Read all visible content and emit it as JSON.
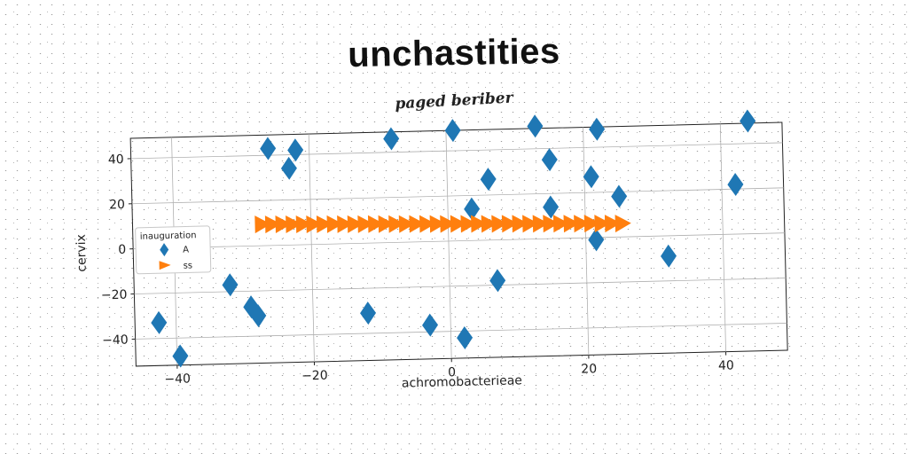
{
  "chart_data": {
    "type": "scatter",
    "title": "unchastities",
    "subtitle": "paged beriber",
    "xlabel": "achromobacterieae",
    "ylabel": "cervix",
    "xlim": [
      -46,
      49
    ],
    "ylim": [
      -52,
      49
    ],
    "xticks": [
      -40,
      -20,
      0,
      20,
      40
    ],
    "yticks": [
      -40,
      -20,
      0,
      20,
      40
    ],
    "xtick_labels": [
      "−40",
      "−20",
      "0",
      "20",
      "40"
    ],
    "ytick_labels": [
      "−40",
      "−20",
      "0",
      "20",
      "40"
    ],
    "grid": true,
    "legend": {
      "title": "inauguration",
      "position": "center-left"
    },
    "series": [
      {
        "name": "A",
        "marker": "diamond",
        "color": "#1f77b4",
        "points": [
          [
            -42.5,
            -33
          ],
          [
            -39.5,
            -48
          ],
          [
            -32,
            -17
          ],
          [
            -29,
            -27
          ],
          [
            -28,
            -31
          ],
          [
            -26,
            43
          ],
          [
            -23,
            34
          ],
          [
            -22,
            42
          ],
          [
            -12,
            -31
          ],
          [
            -8,
            46
          ],
          [
            -3,
            -37
          ],
          [
            1,
            49
          ],
          [
            2,
            -43
          ],
          [
            3.5,
            14
          ],
          [
            6,
            27
          ],
          [
            7,
            -18
          ],
          [
            13,
            50
          ],
          [
            15,
            35
          ],
          [
            15,
            14
          ],
          [
            21,
            27
          ],
          [
            21.5,
            -1
          ],
          [
            22,
            48
          ],
          [
            25,
            18
          ],
          [
            32,
            -9
          ],
          [
            42,
            22
          ],
          [
            44,
            50
          ]
        ]
      },
      {
        "name": "ss",
        "marker": "triangle-right",
        "color": "#ff7f0e",
        "points": [
          [
            -27.0,
            9.5
          ],
          [
            -25.5,
            9.4
          ],
          [
            -24.0,
            9.3
          ],
          [
            -22.5,
            9.2
          ],
          [
            -21.0,
            9.1
          ],
          [
            -19.5,
            9.0
          ],
          [
            -18.0,
            8.9
          ],
          [
            -16.5,
            8.8
          ],
          [
            -15.0,
            8.7
          ],
          [
            -13.5,
            8.6
          ],
          [
            -12.0,
            8.5
          ],
          [
            -10.5,
            8.4
          ],
          [
            -9.0,
            8.3
          ],
          [
            -7.5,
            8.2
          ],
          [
            -6.0,
            8.1
          ],
          [
            -4.5,
            8.0
          ],
          [
            -3.0,
            7.9
          ],
          [
            -1.5,
            7.8
          ],
          [
            0.0,
            7.7
          ],
          [
            1.5,
            7.6
          ],
          [
            3.0,
            7.5
          ],
          [
            4.5,
            7.4
          ],
          [
            6.0,
            7.3
          ],
          [
            7.5,
            7.2
          ],
          [
            9.0,
            7.1
          ],
          [
            10.5,
            7.0
          ],
          [
            12.0,
            6.9
          ],
          [
            13.5,
            6.8
          ],
          [
            15.0,
            6.7
          ],
          [
            16.5,
            6.6
          ],
          [
            18.0,
            6.5
          ],
          [
            19.5,
            6.4
          ],
          [
            21.0,
            6.3
          ],
          [
            22.5,
            6.2
          ],
          [
            24.0,
            6.1
          ],
          [
            25.5,
            6.0
          ]
        ]
      }
    ]
  }
}
